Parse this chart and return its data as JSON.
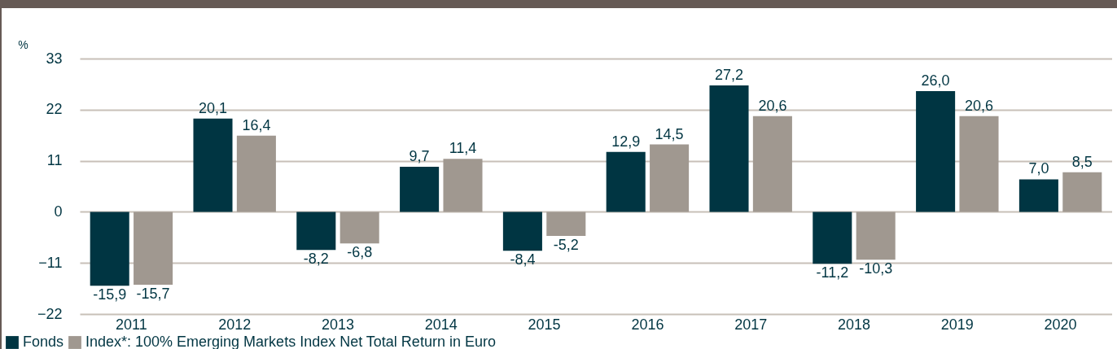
{
  "chart_data": {
    "type": "bar",
    "ylabel": "%",
    "categories": [
      "2011",
      "2012",
      "2013",
      "2014",
      "2015",
      "2016",
      "2017",
      "2018",
      "2019",
      "2020"
    ],
    "series": [
      {
        "name": "Fonds",
        "color": "#003542",
        "values": [
          -15.9,
          20.1,
          -8.2,
          9.7,
          -8.4,
          12.9,
          27.2,
          -11.2,
          26.0,
          7.0
        ],
        "value_labels": [
          "-15,9",
          "20,1",
          "-8,2",
          "9,7",
          "-8,4",
          "12,9",
          "27,2",
          "-11,2",
          "26,0",
          "7,0"
        ]
      },
      {
        "name": "Index*: 100% Emerging Markets Index Net Total Return in Euro",
        "color": "#a09890",
        "values": [
          -15.7,
          16.4,
          -6.8,
          11.4,
          -5.2,
          14.5,
          20.6,
          -10.3,
          20.6,
          8.5
        ],
        "value_labels": [
          "-15,7",
          "16,4",
          "-6,8",
          "11,4",
          "-5,2",
          "14,5",
          "20,6",
          "-10,3",
          "20,6",
          "8,5"
        ]
      }
    ],
    "ylim": [
      -22,
      33
    ],
    "yticks": [
      -22,
      -11,
      0,
      11,
      22,
      33
    ],
    "grid": "y",
    "legend": "bottom left"
  }
}
